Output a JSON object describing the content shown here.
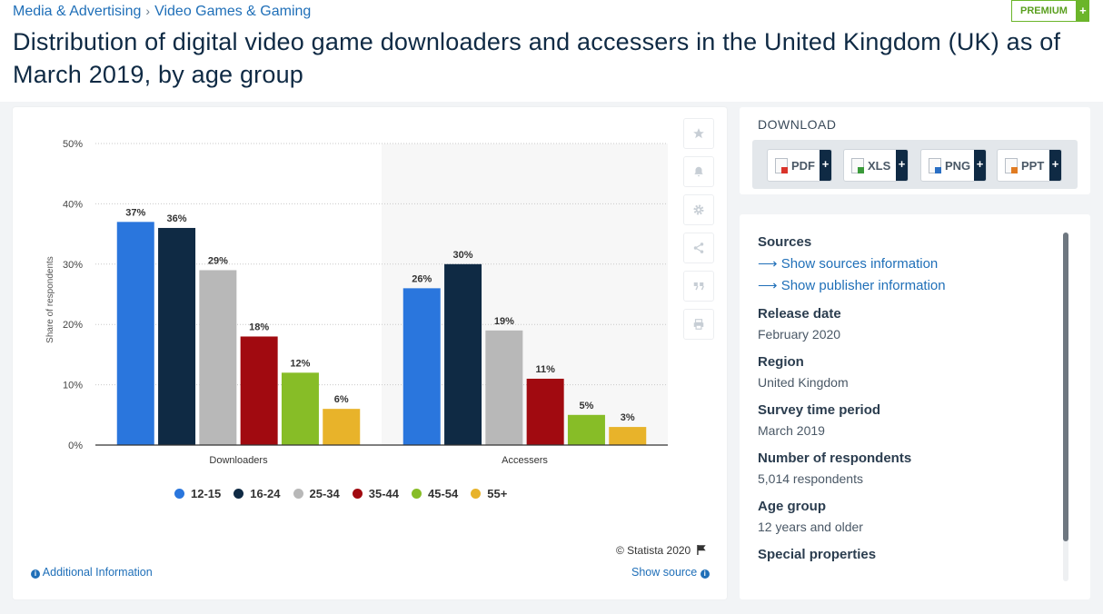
{
  "breadcrumb": {
    "item1": "Media & Advertising",
    "sep": "›",
    "item2": "Video Games & Gaming"
  },
  "premium": {
    "label": "PREMIUM",
    "plus": "+"
  },
  "title": "Distribution of digital video game downloaders and accessers in the United Kingdom (UK) as of March 2019, by age group",
  "chart_data": {
    "type": "bar",
    "categories": [
      "Downloaders",
      "Accessers"
    ],
    "series": [
      {
        "name": "12-15",
        "color": "#2a76dd",
        "values": [
          37,
          26
        ]
      },
      {
        "name": "16-24",
        "color": "#0f2a44",
        "values": [
          36,
          30
        ]
      },
      {
        "name": "25-34",
        "color": "#b8b8b8",
        "values": [
          29,
          19
        ]
      },
      {
        "name": "35-44",
        "color": "#a10a10",
        "values": [
          18,
          11
        ]
      },
      {
        "name": "45-54",
        "color": "#87bd27",
        "values": [
          12,
          5
        ]
      },
      {
        "name": "55+",
        "color": "#e8b32a",
        "values": [
          6,
          3
        ]
      }
    ],
    "ylabel": "Share of respondents",
    "ylim": [
      0,
      50
    ],
    "yticks": [
      "0%",
      "10%",
      "20%",
      "30%",
      "40%",
      "50%"
    ],
    "value_suffix": "%",
    "grid": true,
    "legend": "bottom"
  },
  "tools": [
    "star-icon",
    "bell-icon",
    "gear-icon",
    "share-icon",
    "quote-icon",
    "print-icon"
  ],
  "footer": {
    "copyright": "© Statista 2020",
    "additional_info": "Additional Information",
    "show_source": "Show source"
  },
  "download": {
    "title": "DOWNLOAD",
    "buttons": [
      {
        "label": "PDF",
        "color": "#d9332a"
      },
      {
        "label": "XLS",
        "color": "#3a9a3a"
      },
      {
        "label": "PNG",
        "color": "#2a6fc4"
      },
      {
        "label": "PPT",
        "color": "#e07b22"
      }
    ],
    "plus": "+"
  },
  "sources": {
    "heading": "Sources",
    "link1": "Show sources information",
    "link2": "Show publisher information",
    "arrow": "⟶",
    "release_date_label": "Release date",
    "release_date": "February 2020",
    "region_label": "Region",
    "region": "United Kingdom",
    "survey_label": "Survey time period",
    "survey": "March 2019",
    "respondents_label": "Number of respondents",
    "respondents": "5,014 respondents",
    "age_label": "Age group",
    "age": "12 years and older",
    "special_label": "Special properties"
  }
}
